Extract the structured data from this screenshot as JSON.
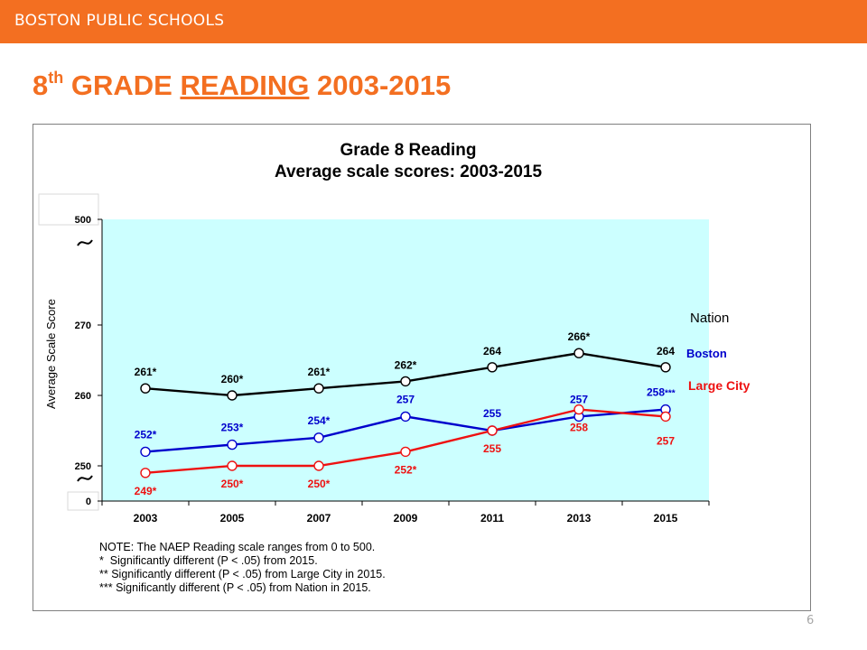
{
  "header": {
    "banner": "BOSTON PUBLIC SCHOOLS"
  },
  "slide": {
    "title_num": "8",
    "title_sup": "th",
    "title_pre": " GRADE ",
    "title_underlined": "READING",
    "title_post": " 2003-2015",
    "page_number": "6"
  },
  "chart_data": {
    "type": "line",
    "title": "Grade 8 Reading",
    "subtitle": "Average scale scores: 2003-2015",
    "ylabel": "Average Scale Score",
    "xlabel": "",
    "categories": [
      "2003",
      "2005",
      "2007",
      "2009",
      "2011",
      "2013",
      "2015"
    ],
    "ylim": [
      245,
      275
    ],
    "yticks": [
      250,
      260,
      270
    ],
    "ytick_labels": [
      "250",
      "260",
      "270"
    ],
    "axis_break_labels": [
      "500",
      "0"
    ],
    "series": [
      {
        "name": "Nation",
        "color": "#000000",
        "values": [
          261,
          260,
          261,
          262,
          264,
          266,
          264
        ],
        "labels": [
          "261*",
          "260*",
          "261*",
          "262*",
          "264",
          "266*",
          "264"
        ]
      },
      {
        "name": "Boston",
        "color": "#0000cc",
        "values": [
          252,
          253,
          254,
          257,
          255,
          257,
          258
        ],
        "labels": [
          "252*",
          "253*",
          "254*",
          "257",
          "255",
          "257",
          "258***"
        ]
      },
      {
        "name": "Large City",
        "color": "#ee1111",
        "values": [
          249,
          250,
          250,
          252,
          255,
          258,
          257
        ],
        "labels": [
          "249*",
          "250*",
          "250*",
          "252*",
          "255",
          "258",
          "257"
        ]
      }
    ],
    "notes": [
      "NOTE: The NAEP Reading scale ranges from 0 to 500.",
      "*  Significantly different (P < .05) from 2015.",
      "** Significantly different (P < .05) from Large City in 2015.",
      "*** Significantly different (P < .05) from Nation in 2015."
    ],
    "plot_background": "#ccffff",
    "grid": false
  }
}
